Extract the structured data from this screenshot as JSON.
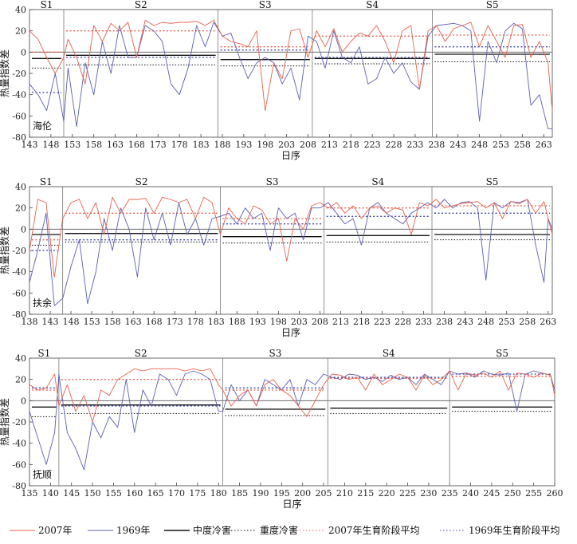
{
  "chart_data": [
    {
      "type": "line",
      "location": "海伦",
      "xlabel": "日序",
      "ylabel": "热量指数差",
      "ylim": [
        -80,
        40
      ],
      "yticks": [
        40,
        20,
        0,
        -20,
        -40,
        -60,
        -80
      ],
      "xlim": [
        143,
        265
      ],
      "xticks": [
        143,
        148,
        153,
        158,
        163,
        168,
        173,
        178,
        183,
        188,
        193,
        198,
        203,
        208,
        213,
        218,
        223,
        228,
        233,
        238,
        243,
        248,
        253,
        258,
        263
      ],
      "stages": [
        {
          "label": "S1",
          "start": 143,
          "end": 151,
          "moderate": -6,
          "severe": -15,
          "avg2007": 0,
          "avg1969": -38
        },
        {
          "label": "S2",
          "start": 151,
          "end": 187,
          "moderate": -3,
          "severe": -12,
          "avg2007": 20,
          "avg1969": -5
        },
        {
          "label": "S3",
          "start": 187,
          "end": 209,
          "moderate": -7,
          "severe": -13,
          "avg2007": 5,
          "avg1969": 2
        },
        {
          "label": "S4",
          "start": 209,
          "end": 237,
          "moderate": -6,
          "severe": -11,
          "avg2007": 15,
          "avg1969": -5
        },
        {
          "label": "S5",
          "start": 237,
          "end": 265,
          "moderate": -2,
          "severe": -9,
          "avg2007": 16,
          "avg1969": 5
        }
      ],
      "series": [
        {
          "name": "2007年",
          "x": [
            143,
            145,
            147,
            149,
            151,
            152,
            154,
            156,
            158,
            160,
            162,
            164,
            166,
            168,
            170,
            172,
            174,
            176,
            178,
            180,
            182,
            184,
            186,
            188,
            190,
            192,
            194,
            196,
            198,
            200,
            202,
            204,
            206,
            208,
            210,
            212,
            214,
            216,
            218,
            220,
            222,
            224,
            226,
            228,
            230,
            232,
            234,
            236,
            238,
            240,
            242,
            244,
            246,
            248,
            250,
            252,
            254,
            256,
            258,
            260,
            262,
            264,
            265
          ],
          "values": [
            20,
            12,
            -5,
            -20,
            -5,
            12,
            -5,
            -30,
            25,
            10,
            27,
            20,
            28,
            -5,
            30,
            25,
            28,
            27,
            28,
            28,
            29,
            25,
            30,
            15,
            10,
            8,
            5,
            20,
            -55,
            -10,
            -25,
            20,
            22,
            -5,
            20,
            5,
            22,
            0,
            10,
            18,
            15,
            25,
            10,
            -10,
            20,
            25,
            -35,
            20,
            25,
            10,
            22,
            25,
            28,
            5,
            25,
            10,
            -5,
            25,
            26,
            -5,
            10,
            -10,
            -55
          ]
        },
        {
          "name": "1969年",
          "x": [
            143,
            145,
            147,
            149,
            151,
            152,
            154,
            156,
            158,
            160,
            162,
            164,
            166,
            168,
            170,
            172,
            174,
            176,
            178,
            180,
            182,
            184,
            186,
            188,
            190,
            192,
            194,
            196,
            198,
            200,
            202,
            204,
            206,
            208,
            210,
            212,
            214,
            216,
            218,
            220,
            222,
            224,
            226,
            228,
            230,
            232,
            234,
            236,
            238,
            240,
            242,
            244,
            246,
            248,
            250,
            252,
            254,
            256,
            258,
            260,
            262,
            264,
            265
          ],
          "values": [
            -30,
            -40,
            -55,
            -20,
            -65,
            -15,
            -70,
            -10,
            -40,
            10,
            -20,
            25,
            -5,
            -5,
            25,
            20,
            10,
            -30,
            -40,
            -15,
            25,
            5,
            28,
            15,
            18,
            -5,
            -25,
            -10,
            -5,
            -10,
            -30,
            -15,
            -45,
            15,
            10,
            -15,
            20,
            -5,
            -10,
            5,
            -30,
            -25,
            -5,
            -20,
            -10,
            -28,
            -35,
            15,
            25,
            26,
            27,
            25,
            20,
            -65,
            10,
            -10,
            20,
            27,
            22,
            -50,
            -40,
            -72,
            -72
          ]
        }
      ]
    },
    {
      "type": "line",
      "location": "扶余",
      "xlabel": "日序",
      "ylabel": "热量指数差",
      "ylim": [
        -80,
        40
      ],
      "yticks": [
        40,
        20,
        0,
        -20,
        -40,
        -60,
        -80
      ],
      "xlim": [
        138,
        264
      ],
      "xticks": [
        138,
        143,
        148,
        153,
        158,
        163,
        168,
        173,
        178,
        183,
        188,
        193,
        198,
        203,
        208,
        213,
        218,
        223,
        228,
        233,
        238,
        243,
        248,
        253,
        258,
        263
      ],
      "stages": [
        {
          "label": "S1",
          "start": 138,
          "end": 146,
          "moderate": -5,
          "severe": -15,
          "avg2007": -10,
          "avg1969": -20
        },
        {
          "label": "S2",
          "start": 146,
          "end": 184,
          "moderate": -4,
          "severe": -12,
          "avg2007": 15,
          "avg1969": -10
        },
        {
          "label": "S3",
          "start": 184,
          "end": 209,
          "moderate": -7,
          "severe": -13,
          "avg2007": 10,
          "avg1969": 5
        },
        {
          "label": "S4",
          "start": 209,
          "end": 235,
          "moderate": -6,
          "severe": -12,
          "avg2007": 20,
          "avg1969": 12
        },
        {
          "label": "S5",
          "start": 235,
          "end": 264,
          "moderate": -5,
          "severe": -10,
          "avg2007": 22,
          "avg1969": 15
        }
      ],
      "series": [
        {
          "name": "2007年",
          "x": [
            138,
            140,
            142,
            144,
            146,
            148,
            150,
            152,
            154,
            156,
            158,
            160,
            162,
            164,
            166,
            168,
            170,
            172,
            174,
            176,
            178,
            180,
            182,
            184,
            186,
            188,
            190,
            192,
            194,
            196,
            198,
            200,
            202,
            204,
            206,
            208,
            210,
            212,
            214,
            216,
            218,
            220,
            222,
            224,
            226,
            228,
            230,
            232,
            234,
            236,
            238,
            240,
            242,
            244,
            246,
            248,
            250,
            252,
            254,
            256,
            258,
            260,
            262,
            263,
            264
          ],
          "values": [
            -20,
            28,
            25,
            -45,
            10,
            25,
            28,
            10,
            25,
            -5,
            30,
            15,
            28,
            28,
            29,
            15,
            30,
            28,
            25,
            28,
            10,
            30,
            25,
            -5,
            20,
            10,
            5,
            22,
            18,
            5,
            10,
            -30,
            10,
            0,
            22,
            25,
            20,
            25,
            15,
            22,
            10,
            20,
            22,
            15,
            20,
            18,
            -5,
            25,
            22,
            28,
            20,
            22,
            24,
            25,
            26,
            20,
            25,
            10,
            26,
            24,
            28,
            15,
            26,
            10,
            -5
          ]
        },
        {
          "name": "1969年",
          "x": [
            138,
            140,
            142,
            144,
            146,
            148,
            150,
            152,
            154,
            156,
            158,
            160,
            162,
            164,
            166,
            168,
            170,
            172,
            174,
            176,
            178,
            180,
            182,
            184,
            186,
            188,
            190,
            192,
            194,
            196,
            198,
            200,
            202,
            204,
            206,
            208,
            210,
            212,
            214,
            216,
            218,
            220,
            222,
            224,
            226,
            228,
            230,
            232,
            234,
            236,
            238,
            240,
            242,
            244,
            246,
            248,
            250,
            252,
            254,
            256,
            258,
            260,
            262,
            263,
            264
          ],
          "values": [
            -50,
            -20,
            15,
            -72,
            -65,
            -35,
            -10,
            -70,
            -40,
            10,
            -20,
            20,
            0,
            -45,
            20,
            -10,
            15,
            -15,
            25,
            -5,
            10,
            -15,
            10,
            12,
            15,
            5,
            20,
            10,
            15,
            -20,
            20,
            10,
            15,
            -10,
            20,
            20,
            25,
            15,
            5,
            10,
            -15,
            20,
            25,
            15,
            10,
            5,
            15,
            20,
            25,
            20,
            28,
            20,
            25,
            26,
            20,
            -48,
            25,
            20,
            26,
            25,
            28,
            -15,
            -50,
            10,
            0
          ]
        }
      ]
    },
    {
      "type": "line",
      "location": "抚顺",
      "xlabel": "日序",
      "ylabel": "热量指数差",
      "ylim": [
        -80,
        40
      ],
      "yticks": [
        40,
        20,
        0,
        -20,
        -40,
        -60,
        -80
      ],
      "xlim": [
        135,
        260
      ],
      "xticks": [
        135,
        140,
        145,
        150,
        155,
        160,
        165,
        170,
        175,
        180,
        185,
        190,
        195,
        200,
        205,
        210,
        215,
        220,
        225,
        230,
        235,
        240,
        245,
        250,
        255,
        260
      ],
      "stages": [
        {
          "label": "S1",
          "start": 135,
          "end": 142,
          "moderate": -6,
          "severe": -15,
          "avg2007": 10,
          "avg1969": 12
        },
        {
          "label": "S2",
          "start": 142,
          "end": 181,
          "moderate": -4,
          "severe": -12,
          "avg2007": 20,
          "avg1969": -5
        },
        {
          "label": "S3",
          "start": 181,
          "end": 206,
          "moderate": -8,
          "severe": -14,
          "avg2007": 10,
          "avg1969": 12
        },
        {
          "label": "S4",
          "start": 206,
          "end": 235,
          "moderate": -7,
          "severe": -12,
          "avg2007": 21,
          "avg1969": 22
        },
        {
          "label": "S5",
          "start": 235,
          "end": 260,
          "moderate": -6,
          "severe": -10,
          "avg2007": 23,
          "avg1969": 25
        }
      ],
      "series": [
        {
          "name": "2007年",
          "x": [
            135,
            137,
            139,
            141,
            142,
            144,
            146,
            148,
            150,
            152,
            154,
            156,
            158,
            160,
            162,
            164,
            166,
            168,
            170,
            172,
            174,
            176,
            178,
            180,
            181,
            183,
            185,
            187,
            189,
            191,
            193,
            195,
            197,
            199,
            201,
            203,
            205,
            207,
            209,
            211,
            213,
            215,
            217,
            219,
            221,
            223,
            225,
            227,
            229,
            231,
            233,
            235,
            237,
            239,
            241,
            243,
            245,
            247,
            249,
            251,
            253,
            255,
            257,
            259,
            260
          ],
          "values": [
            15,
            10,
            12,
            25,
            -5,
            15,
            -10,
            5,
            -20,
            10,
            5,
            20,
            25,
            30,
            28,
            30,
            30,
            30,
            30,
            28,
            30,
            28,
            30,
            15,
            10,
            -5,
            5,
            10,
            -5,
            15,
            20,
            10,
            5,
            -5,
            -15,
            0,
            15,
            25,
            24,
            20,
            22,
            10,
            25,
            15,
            20,
            25,
            22,
            10,
            24,
            15,
            20,
            28,
            10,
            26,
            24,
            26,
            22,
            28,
            10,
            26,
            25,
            22,
            26,
            24,
            5
          ]
        },
        {
          "name": "1969年",
          "x": [
            135,
            137,
            139,
            141,
            142,
            144,
            146,
            148,
            150,
            152,
            154,
            156,
            158,
            160,
            162,
            164,
            166,
            168,
            170,
            172,
            174,
            176,
            178,
            180,
            181,
            183,
            185,
            187,
            189,
            191,
            193,
            195,
            197,
            199,
            201,
            203,
            205,
            207,
            209,
            211,
            213,
            215,
            217,
            219,
            221,
            223,
            225,
            227,
            229,
            231,
            233,
            235,
            237,
            239,
            241,
            243,
            245,
            247,
            249,
            251,
            253,
            255,
            257,
            259,
            260
          ],
          "values": [
            -10,
            -35,
            -60,
            -30,
            25,
            -30,
            -45,
            -65,
            -20,
            -35,
            -15,
            -25,
            20,
            -30,
            10,
            -5,
            25,
            20,
            5,
            25,
            28,
            25,
            20,
            -10,
            -10,
            15,
            0,
            10,
            -5,
            20,
            15,
            10,
            20,
            -5,
            20,
            15,
            25,
            22,
            20,
            25,
            24,
            20,
            22,
            18,
            24,
            20,
            22,
            15,
            25,
            20,
            15,
            28,
            25,
            26,
            22,
            28,
            25,
            24,
            26,
            -10,
            25,
            28,
            26,
            24,
            10
          ]
        }
      ]
    }
  ],
  "legend": {
    "items": [
      {
        "label": "2007年",
        "color": "#e8604c",
        "style": "solid"
      },
      {
        "label": "1969年",
        "color": "#5b5fb3",
        "style": "solid"
      },
      {
        "label": "中度冷害",
        "color": "#111111",
        "style": "solid"
      },
      {
        "label": "重度冷害",
        "color": "#111111",
        "style": "dotted"
      },
      {
        "label": "2007年生育阶段平均",
        "color": "#e8604c",
        "style": "dotted"
      },
      {
        "label": "1969年生育阶段平均",
        "color": "#3d45a8",
        "style": "dotted"
      }
    ]
  },
  "colors": {
    "s2007": "#e8604c",
    "s1969": "#5b5fb3",
    "moderate": "#111111",
    "severe": "#111111",
    "avg2007": "#e8604c",
    "avg1969": "#3d45a8"
  }
}
